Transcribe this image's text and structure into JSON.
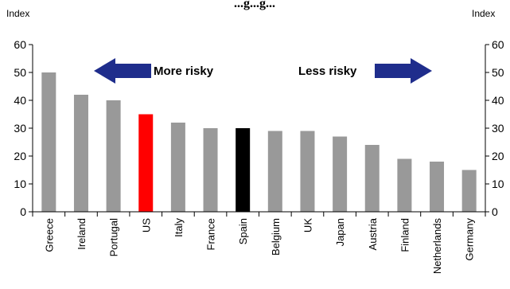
{
  "chart_data": {
    "type": "bar",
    "title": "...g...g...",
    "y_unit_left": "Index",
    "y_unit_right": "Index",
    "ylim": [
      0,
      60
    ],
    "yticks": [
      0,
      10,
      20,
      30,
      40,
      50,
      60
    ],
    "categories": [
      "Greece",
      "Ireland",
      "Portugal",
      "US",
      "Italy",
      "France",
      "Spain",
      "Belgium",
      "UK",
      "Japan",
      "Austria",
      "Finland",
      "Netherlands",
      "Germany"
    ],
    "values": [
      50,
      42,
      40,
      35,
      32,
      30,
      30,
      29,
      29,
      27,
      24,
      19,
      18,
      15
    ],
    "colors": [
      "#999999",
      "#999999",
      "#999999",
      "#ff0000",
      "#999999",
      "#999999",
      "#000000",
      "#999999",
      "#999999",
      "#999999",
      "#999999",
      "#999999",
      "#999999",
      "#999999"
    ],
    "grid": false,
    "annotations": {
      "more_risky": "More risky",
      "less_risky": "Less risky",
      "arrow_color": "#1f2d8c"
    }
  }
}
